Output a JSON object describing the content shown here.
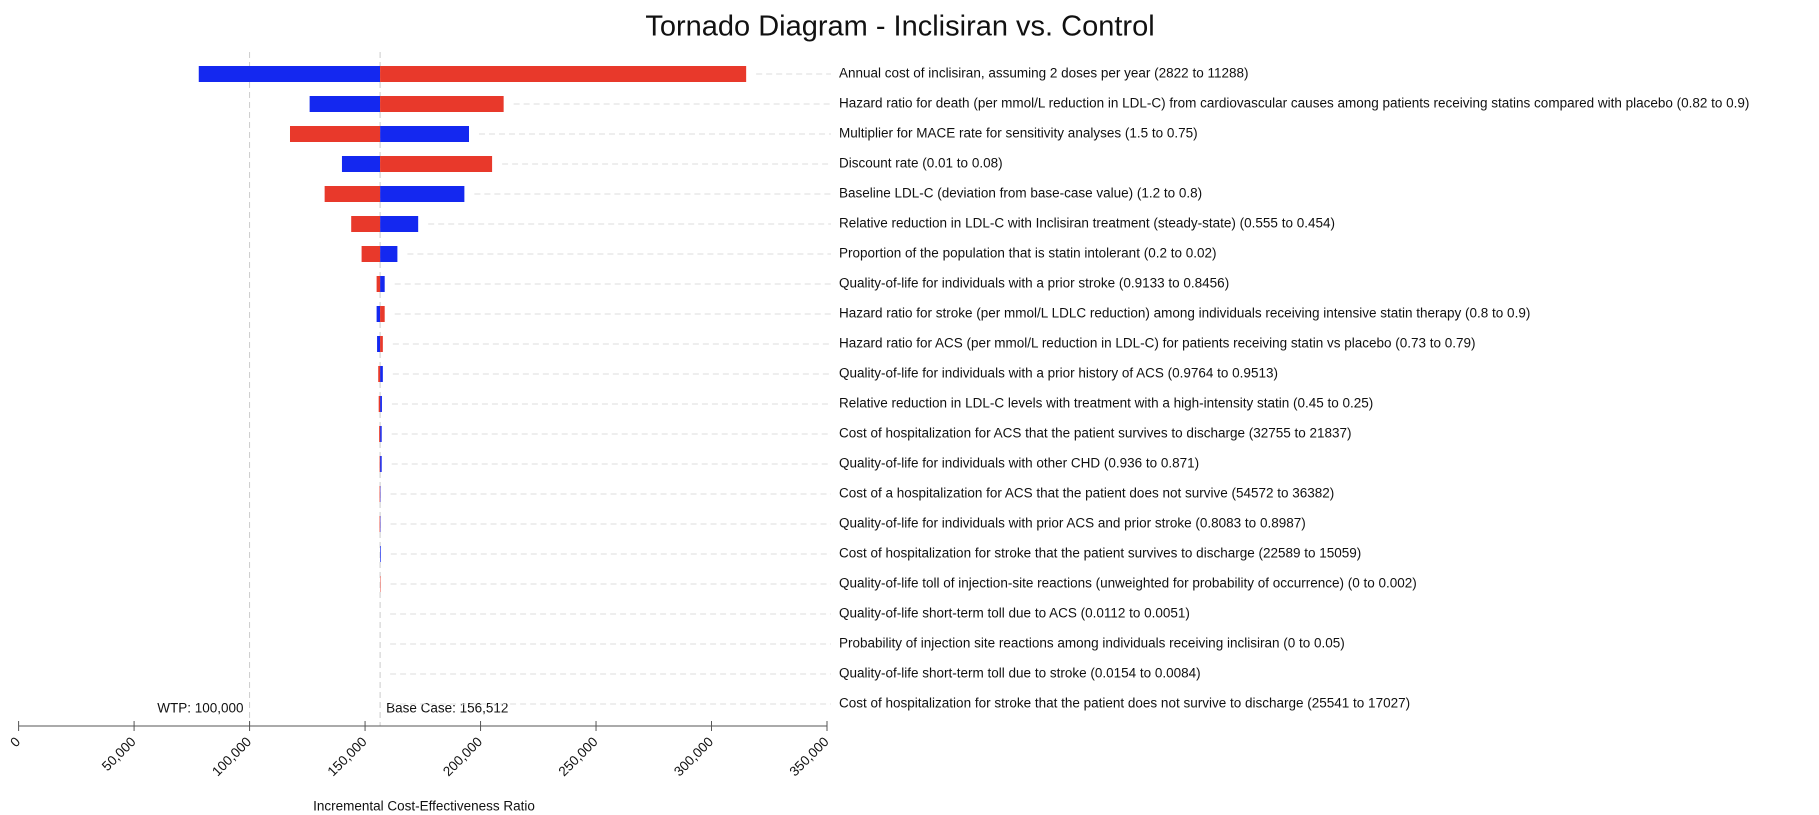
{
  "chart_data": {
    "type": "tornado",
    "title": "Tornado Diagram - Inclisiran vs. Control",
    "x_label": "Incremental Cost-Effectiveness Ratio",
    "categories": [
      "Annual cost of inclisiran, assuming 2 doses per year (2822 to 11288)",
      "Hazard ratio for death (per mmol/L reduction in LDL-C) from cardiovascular causes among patients receiving statins compared with placebo (0.82 to 0.9)",
      "Multiplier for MACE rate for sensitivity analyses (1.5 to 0.75)",
      "Discount rate (0.01 to 0.08)",
      "Baseline LDL-C (deviation from base-case value) (1.2 to 0.8)",
      "Relative reduction in LDL-C with Inclisiran treatment (steady-state) (0.555 to 0.454)",
      "Proportion of the population that is statin intolerant (0.2 to 0.02)",
      "Quality-of-life for individuals with a prior stroke (0.9133 to 0.8456)",
      "Hazard ratio for stroke (per mmol/L LDLC reduction) among individuals receiving intensive statin therapy (0.8 to 0.9)",
      "Hazard ratio for ACS (per mmol/L reduction in LDL-C) for patients receiving statin vs placebo (0.73 to 0.79)",
      "Quality-of-life for individuals with a prior history of ACS (0.9764 to 0.9513)",
      "Relative reduction in LDL-C levels with treatment with a high-intensity statin (0.45 to 0.25)",
      "Cost of hospitalization for ACS that the patient survives to discharge (32755 to 21837)",
      "Quality-of-life for individuals with other CHD (0.936 to 0.871)",
      "Cost of a hospitalization for ACS that the patient does not survive (54572 to 36382)",
      "Quality-of-life for individuals with prior ACS and prior stroke (0.8083 to 0.8987)",
      "Cost of hospitalization for stroke that the patient survives to discharge (22589 to 15059)",
      "Quality-of-life toll of injection-site reactions (unweighted for probability of occurrence) (0 to 0.002)",
      "Quality-of-life short-term toll due to ACS (0.0112 to 0.0051)",
      "Probability of injection site reactions among individuals receiving inclisiran (0 to 0.05)",
      "Quality-of-life short-term toll due to stroke (0.0154 to 0.0084)",
      "Cost of hospitalization for stroke that the patient does not survive to discharge (25541 to 17027)"
    ],
    "series": [
      {
        "color": "#1428f0",
        "values": [
          78000,
          126000,
          195000,
          140000,
          193000,
          173000,
          164000,
          158500,
          155000,
          155200,
          157700,
          157300,
          157200,
          157200,
          156700,
          156700,
          156800,
          156512,
          156512,
          156512,
          156512,
          156512
        ]
      },
      {
        "color": "#e8392b",
        "values": [
          315000,
          210000,
          117500,
          205000,
          132500,
          144000,
          148500,
          155000,
          158500,
          157700,
          155700,
          155900,
          156100,
          156300,
          156300,
          156300,
          156512,
          156700,
          156512,
          156512,
          156512,
          156512
        ]
      }
    ],
    "base_case": {
      "value": 156512,
      "label": "Base Case: 156,512"
    },
    "wtp": {
      "value": 100000,
      "label": "WTP: 100,000"
    },
    "xlim": [
      0,
      350000
    ],
    "xticks": [
      0,
      {
        "value": 50000,
        "label": "50,000"
      },
      {
        "value": 100000,
        "label": "100,000"
      },
      {
        "value": 150000,
        "label": "150,000"
      },
      {
        "value": 200000,
        "label": "200,000"
      },
      {
        "value": 250000,
        "label": "250,000"
      },
      {
        "value": 300000,
        "label": "300,000"
      },
      {
        "value": 350000,
        "label": "350,000"
      }
    ]
  }
}
